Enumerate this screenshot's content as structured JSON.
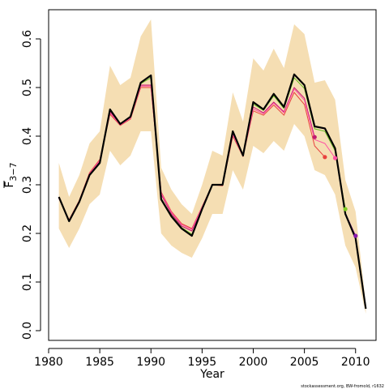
{
  "chart_data": {
    "type": "line",
    "xlabel": "Year",
    "ylabel": {
      "main": "F",
      "subscript": "3−7"
    },
    "xlim": [
      1980,
      2012
    ],
    "ylim": [
      -0.02,
      0.66
    ],
    "xticks": [
      1980,
      1985,
      1990,
      1995,
      2000,
      2005,
      2010
    ],
    "yticks": [
      0.0,
      0.1,
      0.2,
      0.3,
      0.4,
      0.5,
      0.6
    ],
    "ytick_labels": [
      "0.0",
      "0.1",
      "0.2",
      "0.3",
      "0.4",
      "0.5",
      "0.6"
    ],
    "grid": false,
    "legend": "none",
    "credit": "stockassessment.org, BW-fromold, r1632",
    "band": {
      "color": "#f5deb3",
      "x": [
        1981,
        1982,
        1983,
        1984,
        1985,
        1986,
        1987,
        1988,
        1989,
        1990,
        1991,
        1992,
        1993,
        1994,
        1995,
        1996,
        1997,
        1998,
        1999,
        2000,
        2001,
        2002,
        2003,
        2004,
        2005,
        2006,
        2007,
        2008,
        2009,
        2010,
        2011
      ],
      "lower": [
        0.21,
        0.17,
        0.21,
        0.26,
        0.28,
        0.37,
        0.34,
        0.36,
        0.41,
        0.41,
        0.2,
        0.175,
        0.16,
        0.15,
        0.19,
        0.24,
        0.24,
        0.33,
        0.29,
        0.38,
        0.365,
        0.39,
        0.37,
        0.425,
        0.4,
        0.33,
        0.32,
        0.28,
        0.175,
        0.13,
        0.035
      ],
      "upper": [
        0.345,
        0.275,
        0.32,
        0.385,
        0.41,
        0.545,
        0.505,
        0.52,
        0.605,
        0.64,
        0.335,
        0.29,
        0.26,
        0.24,
        0.3,
        0.37,
        0.36,
        0.49,
        0.43,
        0.56,
        0.535,
        0.58,
        0.54,
        0.63,
        0.61,
        0.51,
        0.515,
        0.475,
        0.31,
        0.245,
        0.055
      ]
    },
    "series": [
      {
        "color": "#000000",
        "width": 2.2,
        "x": [
          1981,
          1982,
          1983,
          1984,
          1985,
          1986,
          1987,
          1988,
          1989,
          1990,
          1991,
          1992,
          1993,
          1994,
          1995,
          1996,
          1997,
          1998,
          1999,
          2000,
          2001,
          2002,
          2003,
          2004,
          2005,
          2006,
          2007,
          2008,
          2009,
          2010,
          2011
        ],
        "values": [
          0.275,
          0.225,
          0.265,
          0.32,
          0.345,
          0.455,
          0.425,
          0.44,
          0.51,
          0.525,
          0.27,
          0.235,
          0.21,
          0.195,
          0.25,
          0.3,
          0.3,
          0.41,
          0.36,
          0.47,
          0.455,
          0.487,
          0.46,
          0.527,
          0.505,
          0.42,
          0.416,
          0.375,
          0.24,
          0.19,
          0.045
        ]
      },
      {
        "color": "#e8423f",
        "width": 1,
        "endpoint_color": "#e8423f",
        "x": [
          1981,
          1982,
          1983,
          1984,
          1985,
          1986,
          1987,
          1988,
          1989,
          1990,
          1991,
          1992,
          1993,
          1994,
          1995,
          1996,
          1997,
          1998,
          1999,
          2000,
          2001,
          2002,
          2003,
          2004,
          2005,
          2006,
          2007
        ],
        "values": [
          0.272,
          0.228,
          0.268,
          0.325,
          0.352,
          0.445,
          0.422,
          0.435,
          0.5,
          0.5,
          0.285,
          0.245,
          0.22,
          0.21,
          0.255,
          0.3,
          0.298,
          0.4,
          0.358,
          0.452,
          0.443,
          0.464,
          0.443,
          0.49,
          0.465,
          0.38,
          0.357
        ]
      },
      {
        "color": "#c21a6e",
        "width": 1,
        "endpoint_color": "#c21a6e",
        "x": [
          1981,
          1982,
          1983,
          1984,
          1985,
          1986,
          1987,
          1988,
          1989,
          1990,
          1991,
          1992,
          1993,
          1994,
          1995,
          1996,
          1997,
          1998,
          1999,
          2000,
          2001,
          2002,
          2003,
          2004,
          2005,
          2006
        ],
        "values": [
          0.274,
          0.226,
          0.266,
          0.322,
          0.348,
          0.45,
          0.424,
          0.438,
          0.505,
          0.505,
          0.28,
          0.24,
          0.215,
          0.205,
          0.252,
          0.3,
          0.299,
          0.405,
          0.359,
          0.46,
          0.448,
          0.47,
          0.45,
          0.5,
          0.478,
          0.398
        ]
      },
      {
        "color": "#ff4fa3",
        "width": 1,
        "endpoint_color": "#ff4fa3",
        "x": [
          1981,
          1982,
          1983,
          1984,
          1985,
          1986,
          1987,
          1988,
          1989,
          1990,
          1991,
          1992,
          1993,
          1994,
          1995,
          1996,
          1997,
          1998,
          1999,
          2000,
          2001,
          2002,
          2003,
          2004,
          2005,
          2006,
          2007,
          2008
        ],
        "values": [
          0.273,
          0.227,
          0.267,
          0.323,
          0.35,
          0.448,
          0.423,
          0.437,
          0.503,
          0.503,
          0.283,
          0.243,
          0.218,
          0.208,
          0.254,
          0.3,
          0.299,
          0.403,
          0.359,
          0.456,
          0.446,
          0.468,
          0.448,
          0.497,
          0.474,
          0.393,
          0.385,
          0.355
        ]
      },
      {
        "color": "#66bb22",
        "width": 1,
        "endpoint_color": "#7fcc22",
        "x": [
          1981,
          1982,
          1983,
          1984,
          1985,
          1986,
          1987,
          1988,
          1989,
          1990,
          1991,
          1992,
          1993,
          1994,
          1995,
          1996,
          1997,
          1998,
          1999,
          2000,
          2001,
          2002,
          2003,
          2004,
          2005,
          2006,
          2007,
          2008,
          2009
        ],
        "values": [
          0.275,
          0.225,
          0.265,
          0.321,
          0.346,
          0.453,
          0.425,
          0.44,
          0.508,
          0.52,
          0.272,
          0.237,
          0.212,
          0.198,
          0.251,
          0.3,
          0.3,
          0.408,
          0.36,
          0.466,
          0.453,
          0.483,
          0.457,
          0.52,
          0.498,
          0.415,
          0.41,
          0.37,
          0.25
        ]
      },
      {
        "color": "#8a1ab0",
        "width": 1,
        "endpoint_color": "#8a1ab0",
        "x": [
          1981,
          1982,
          1983,
          1984,
          1985,
          1986,
          1987,
          1988,
          1989,
          1990,
          1991,
          1992,
          1993,
          1994,
          1995,
          1996,
          1997,
          1998,
          1999,
          2000,
          2001,
          2002,
          2003,
          2004,
          2005,
          2006,
          2007,
          2008,
          2009,
          2010
        ],
        "values": [
          0.275,
          0.225,
          0.265,
          0.32,
          0.345,
          0.455,
          0.425,
          0.44,
          0.51,
          0.524,
          0.27,
          0.235,
          0.21,
          0.195,
          0.25,
          0.3,
          0.3,
          0.41,
          0.36,
          0.469,
          0.455,
          0.486,
          0.46,
          0.526,
          0.504,
          0.42,
          0.415,
          0.374,
          0.242,
          0.195
        ]
      }
    ]
  }
}
